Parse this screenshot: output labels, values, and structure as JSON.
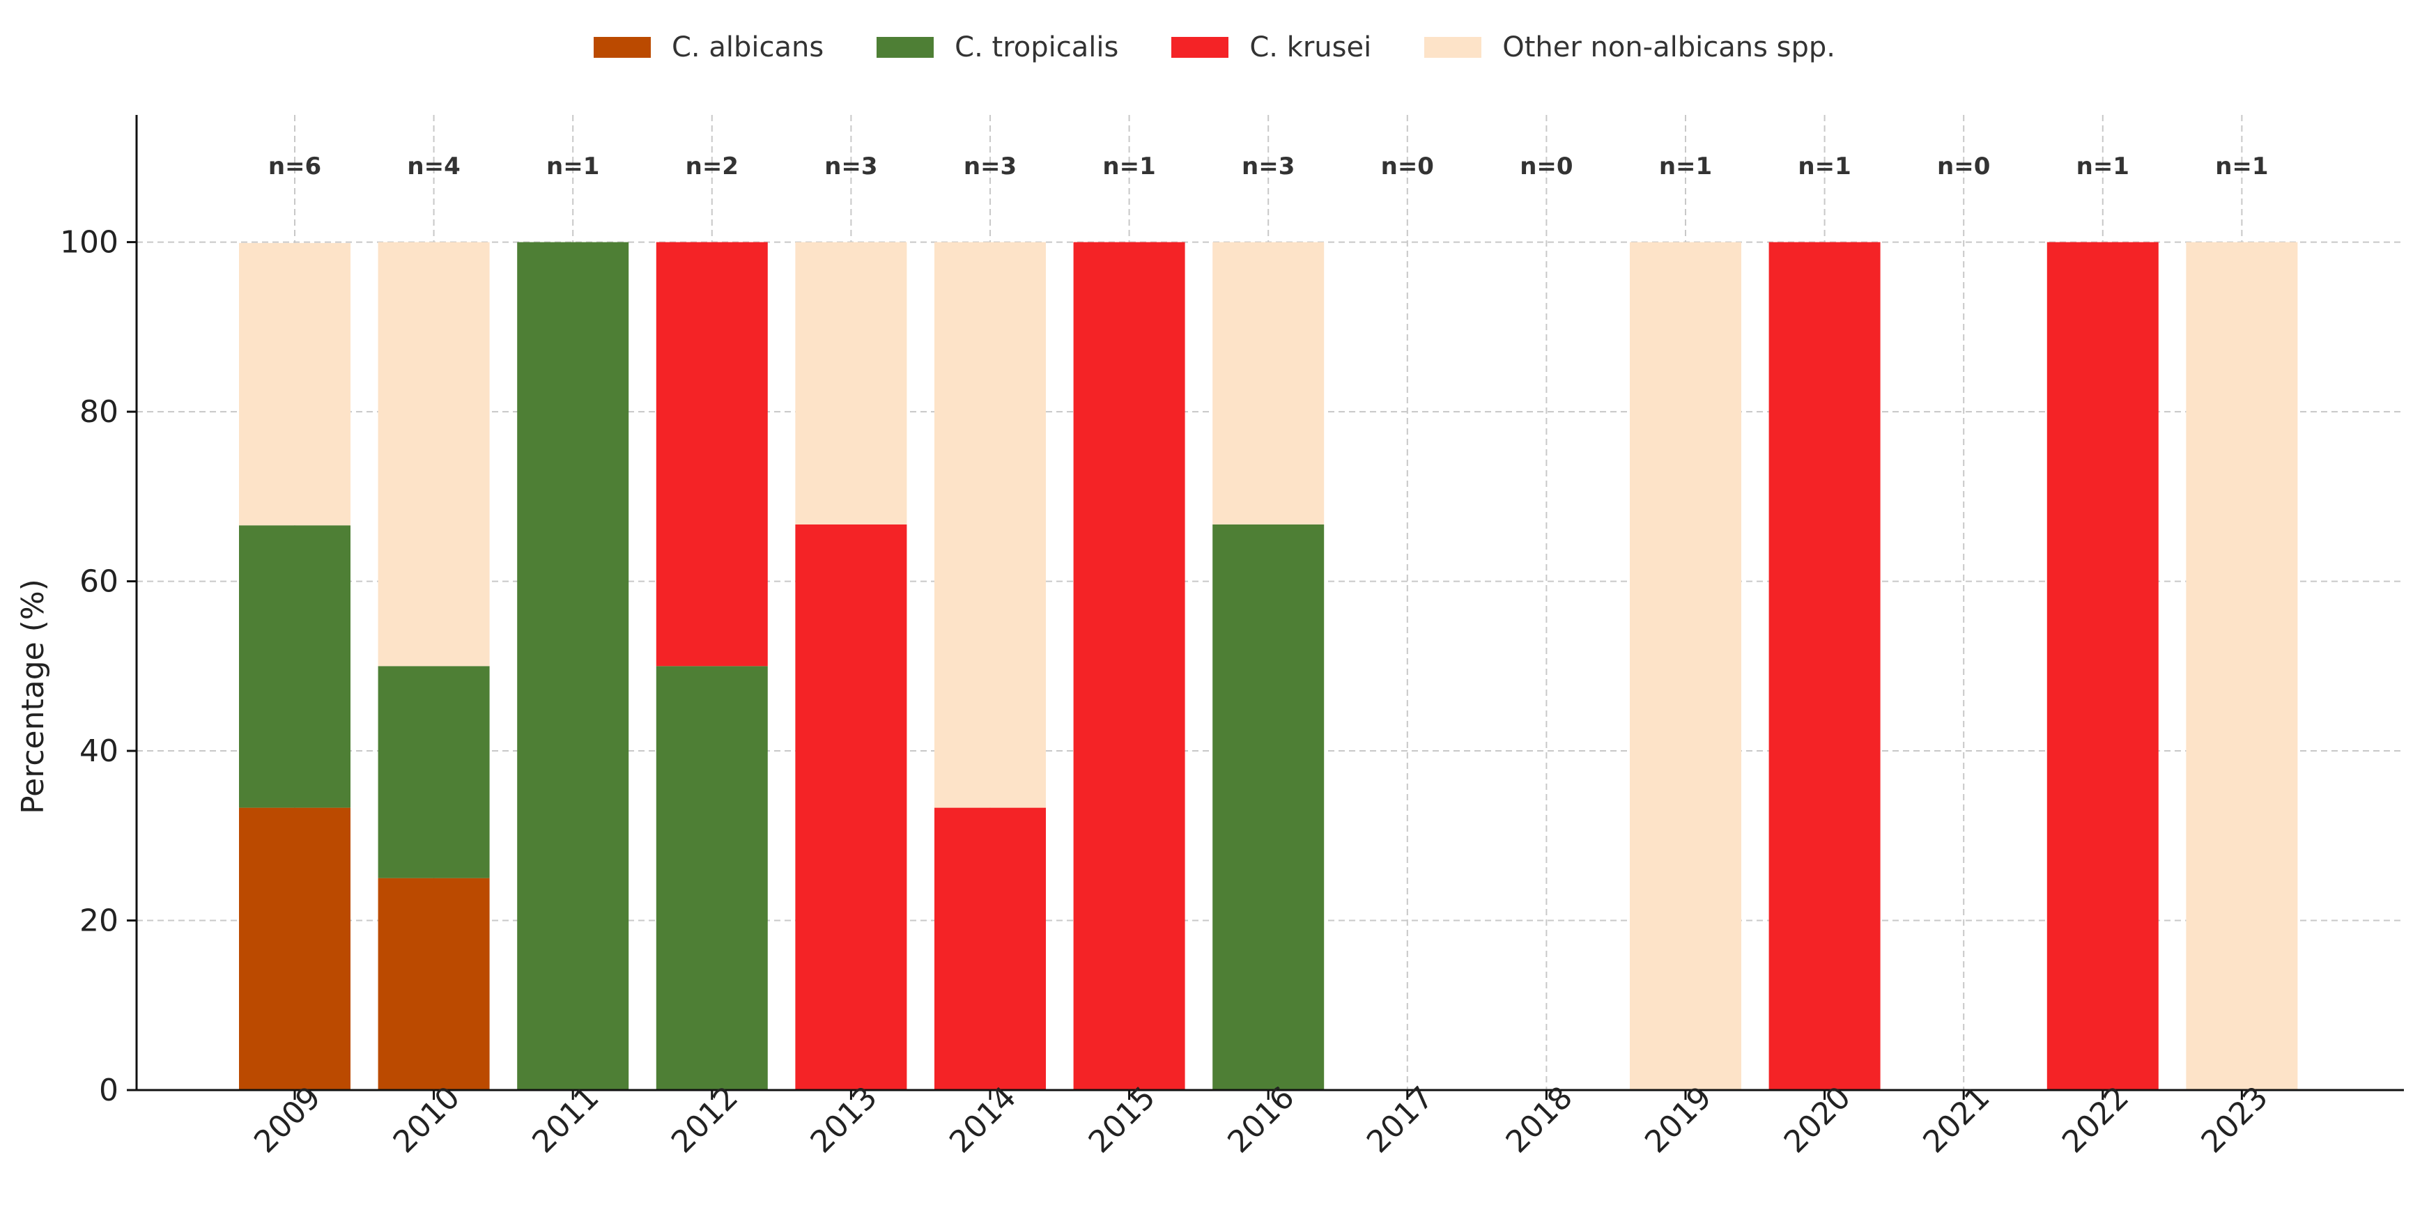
{
  "chart_data": {
    "type": "bar",
    "stacked": true,
    "title": "",
    "xlabel": "",
    "ylabel": "Percentage (%)",
    "ylim": [
      0,
      115
    ],
    "yticks": [
      0,
      20,
      40,
      60,
      80,
      100
    ],
    "grid": true,
    "legend_position": "top-center",
    "categories": [
      "2009",
      "2010",
      "2011",
      "2012",
      "2013",
      "2014",
      "2015",
      "2016",
      "2017",
      "2018",
      "2019",
      "2020",
      "2021",
      "2022",
      "2023"
    ],
    "counts": [
      "n=6",
      "n=4",
      "n=1",
      "n=2",
      "n=3",
      "n=3",
      "n=1",
      "n=3",
      "n=0",
      "n=0",
      "n=1",
      "n=1",
      "n=0",
      "n=1",
      "n=1"
    ],
    "series": [
      {
        "name": "C. albicans",
        "color": "#bb4a00",
        "values": [
          33.3,
          25,
          0,
          0,
          0,
          0,
          0,
          0,
          0,
          0,
          0,
          0,
          0,
          0,
          0
        ]
      },
      {
        "name": "C. tropicalis",
        "color": "#4e7f35",
        "values": [
          33.3,
          25,
          100,
          50,
          0,
          0,
          0,
          66.7,
          0,
          0,
          0,
          0,
          0,
          0,
          0
        ]
      },
      {
        "name": "C. krusei",
        "color": "#f42326",
        "values": [
          0,
          0,
          0,
          50,
          66.7,
          33.3,
          100,
          0,
          0,
          0,
          0,
          100,
          0,
          100,
          0
        ]
      },
      {
        "name": "Other non-albicans spp.",
        "color": "#fde3c8",
        "values": [
          33.3,
          50,
          0,
          0,
          33.3,
          66.7,
          0,
          33.3,
          0,
          0,
          100,
          0,
          0,
          0,
          100
        ]
      }
    ]
  }
}
